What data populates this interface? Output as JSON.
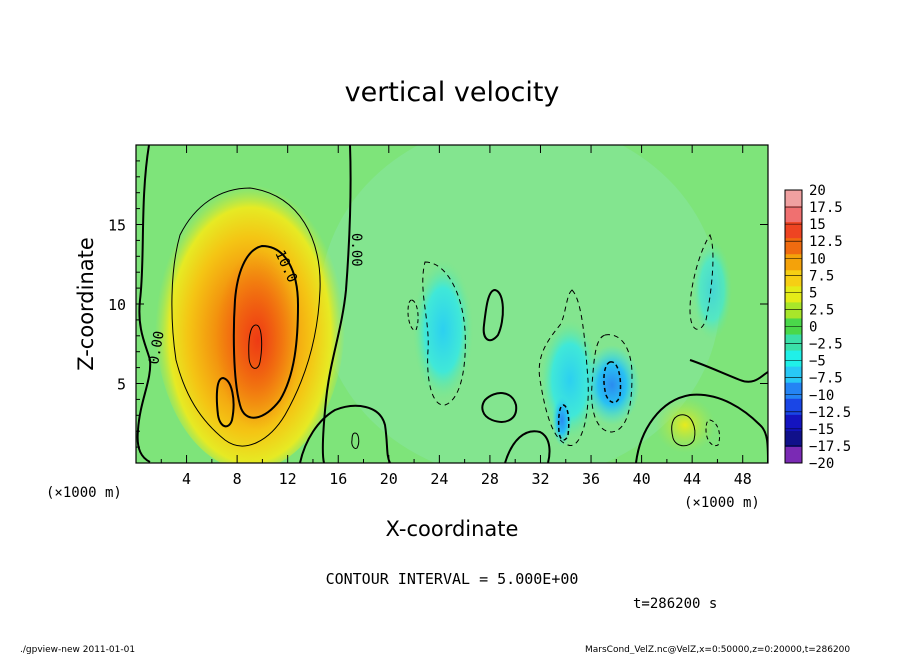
{
  "chart_data": {
    "type": "heatmap",
    "title": "vertical velocity",
    "xlabel": "X-coordinate",
    "ylabel": "Z-coordinate",
    "x_unit": "(×1000 m)",
    "y_unit": "(×1000 m)",
    "xlim": [
      0,
      50
    ],
    "ylim": [
      0,
      20
    ],
    "x_ticks": [
      4,
      8,
      12,
      16,
      20,
      24,
      28,
      32,
      36,
      40,
      44,
      48
    ],
    "y_ticks": [
      5,
      10,
      15
    ],
    "colorbar": {
      "levels": [
        20,
        17.5,
        15,
        12.5,
        10,
        7.5,
        5,
        2.5,
        0,
        -2.5,
        -5,
        -7.5,
        -10,
        -12.5,
        -15,
        -17.5,
        -20
      ],
      "labels": [
        "20",
        "17.5",
        "15",
        "12.5",
        "10",
        "7.5",
        "5",
        "2.5",
        "0",
        "−2.5",
        "−5",
        "−7.5",
        "−10",
        "−12.5",
        "−15",
        "−17.5",
        "−20"
      ],
      "colors": [
        "#f0a0a0",
        "#f07070",
        "#ee4422",
        "#f06b10",
        "#f4a20a",
        "#f6cf14",
        "#e4ec18",
        "#a8e62a",
        "#4ad84a",
        "#3ae0a8",
        "#20f0e8",
        "#28c8f6",
        "#2484f4",
        "#1a46e6",
        "#1414c0",
        "#10108a",
        "#7a2ab4"
      ]
    },
    "contour_labels": [
      "10.0",
      "0.00",
      "0.00"
    ],
    "contour_interval": "CONTOUR INTERVAL = 5.000E+00",
    "time": "t=286200 s"
  },
  "footer": {
    "left": "./gpview-new  2011-01-01",
    "right": "MarsCond_VelZ.nc@VelZ,x=0:50000,z=0:20000,t=286200"
  }
}
